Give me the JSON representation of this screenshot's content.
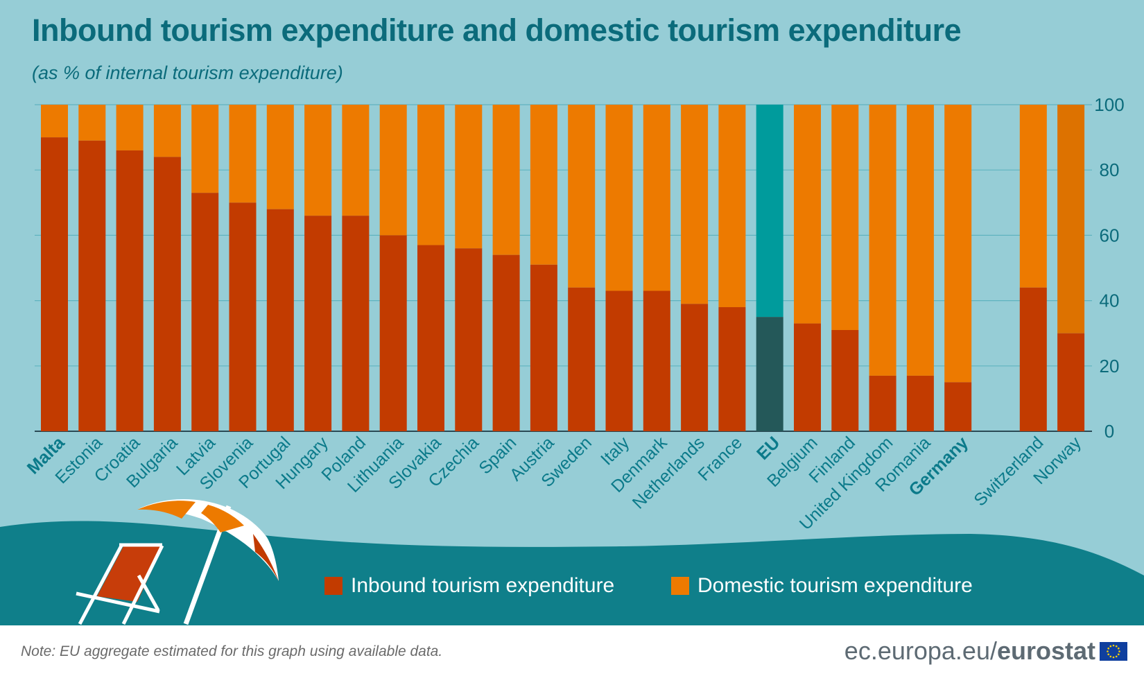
{
  "header": {
    "title": "Inbound tourism expenditure and domestic tourism expenditure",
    "subtitle": "(as % of internal tourism expenditure)"
  },
  "footer": {
    "note": "Note: EU aggregate estimated for this graph using available data.",
    "brand_domain": "ec.europa.eu/",
    "brand_name": "eurostat"
  },
  "colors": {
    "inbound": "#c23b00",
    "domestic": "#ed7a00",
    "eu_inbound": "#245859",
    "eu_domestic": "#009b9c",
    "norway_domestic": "#dd7200",
    "label": "#0b7a8a",
    "gridline": "#5fb3bf"
  },
  "legend": {
    "inbound_label": "Inbound tourism expenditure",
    "domestic_label": "Domestic tourism expenditure"
  },
  "chart_data": {
    "type": "bar",
    "stacked": true,
    "categories": [
      "Malta",
      "Estonia",
      "Croatia",
      "Bulgaria",
      "Latvia",
      "Slovenia",
      "Portugal",
      "Hungary",
      "Poland",
      "Lithuania",
      "Slovakia",
      "Czechia",
      "Spain",
      "Austria",
      "Sweden",
      "Italy",
      "Denmark",
      "Netherlands",
      "France",
      "EU",
      "Belgium",
      "Finland",
      "United Kingdom",
      "Romania",
      "Germany",
      "Switzerland",
      "Norway"
    ],
    "bold_categories": [
      "Malta",
      "EU",
      "Germany"
    ],
    "series": [
      {
        "name": "Inbound tourism expenditure",
        "values": [
          90,
          89,
          86,
          84,
          73,
          70,
          68,
          66,
          66,
          60,
          57,
          56,
          54,
          51,
          44,
          43,
          43,
          39,
          38,
          35,
          33,
          31,
          17,
          17,
          15,
          44,
          30
        ]
      },
      {
        "name": "Domestic tourism expenditure",
        "values": [
          10,
          11,
          14,
          16,
          27,
          30,
          32,
          34,
          34,
          40,
          43,
          44,
          46,
          49,
          56,
          57,
          57,
          61,
          62,
          65,
          67,
          69,
          83,
          83,
          85,
          56,
          70
        ]
      }
    ],
    "yticks": [
      0,
      20,
      40,
      60,
      80,
      100
    ],
    "ylim": [
      0,
      100
    ],
    "axis_side": "right",
    "grid": true,
    "legend_position": "bottom"
  }
}
